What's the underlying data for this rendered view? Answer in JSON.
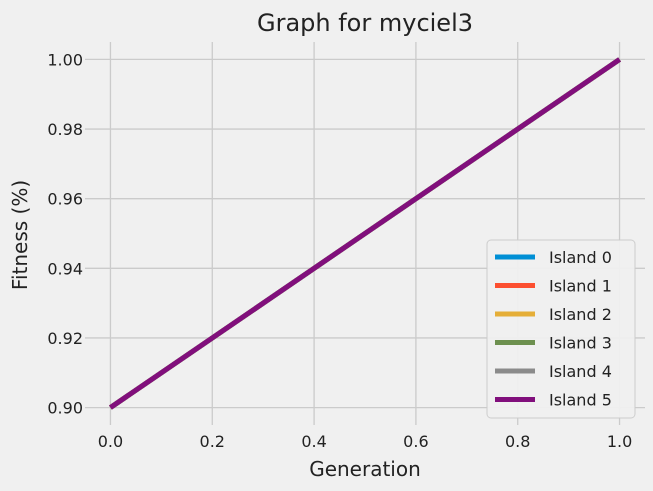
{
  "chart_data": {
    "type": "line",
    "title": "Graph for myciel3",
    "xlabel": "Generation",
    "ylabel": "Fitness (%)",
    "xlim": [
      -0.05,
      1.05
    ],
    "ylim": [
      0.895,
      1.005
    ],
    "xticks": [
      0.0,
      0.2,
      0.4,
      0.6,
      0.8,
      1.0
    ],
    "xtick_labels": [
      "0.0",
      "0.2",
      "0.4",
      "0.6",
      "0.8",
      "1.0"
    ],
    "yticks": [
      0.9,
      0.92,
      0.94,
      0.96,
      0.98,
      1.0
    ],
    "ytick_labels": [
      "0.90",
      "0.92",
      "0.94",
      "0.96",
      "0.98",
      "1.00"
    ],
    "grid": true,
    "legend_position": "lower-right",
    "series": [
      {
        "name": "Island 0",
        "color": "#008fd5",
        "x": [
          0,
          1
        ],
        "y": [
          0.9,
          1.0
        ]
      },
      {
        "name": "Island 1",
        "color": "#fc4f30",
        "x": [
          0,
          1
        ],
        "y": [
          0.9,
          1.0
        ]
      },
      {
        "name": "Island 2",
        "color": "#e5ae38",
        "x": [
          0,
          1
        ],
        "y": [
          0.9,
          1.0
        ]
      },
      {
        "name": "Island 3",
        "color": "#6d904f",
        "x": [
          0,
          1
        ],
        "y": [
          0.9,
          1.0
        ]
      },
      {
        "name": "Island 4",
        "color": "#8b8b8b",
        "x": [
          0,
          1
        ],
        "y": [
          0.9,
          1.0
        ]
      },
      {
        "name": "Island 5",
        "color": "#810f7c",
        "x": [
          0,
          1
        ],
        "y": [
          0.9,
          1.0
        ]
      }
    ]
  }
}
